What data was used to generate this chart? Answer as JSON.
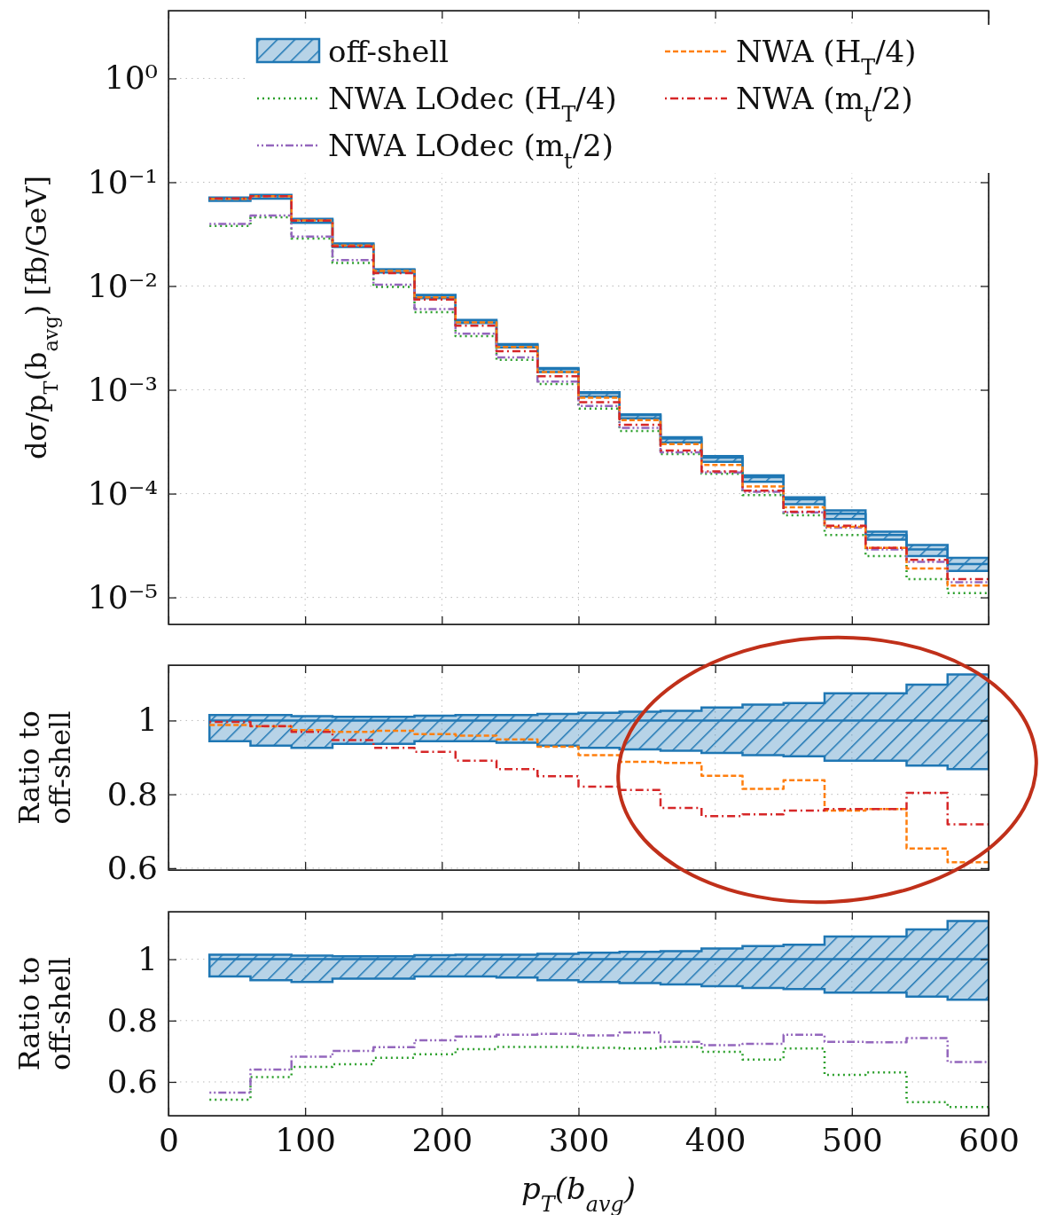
{
  "chart_data": [
    {
      "type": "step",
      "ylabel": "dσ/p$_{T}$(b$_{avg}$) [fb/GeV]",
      "x": [
        30,
        60,
        90,
        120,
        150,
        180,
        210,
        240,
        270,
        300,
        330,
        360,
        390,
        420,
        450,
        480,
        510,
        540,
        570,
        600
      ],
      "xlim": [
        0,
        600
      ],
      "xticks": [
        0,
        100,
        200,
        300,
        400,
        500,
        600
      ],
      "ylim": [
        5.5e-06,
        4.5
      ],
      "log": true,
      "yticks": [
        {
          "value": 1e-05,
          "label": "10⁻⁵"
        },
        {
          "value": 0.0001,
          "label": "10⁻⁴"
        },
        {
          "value": 0.001,
          "label": "10⁻³"
        },
        {
          "value": 0.01,
          "label": "10⁻²"
        },
        {
          "value": 0.1,
          "label": "10⁻¹"
        },
        {
          "value": 1,
          "label": "10⁰"
        }
      ],
      "tick_labels": "y",
      "grid": true,
      "legend": "top",
      "series": [
        {
          "name": "off-shell",
          "color": "#1f77b4",
          "line_style": "solid",
          "values": [
            0.07,
            0.0745,
            0.044,
            0.0254,
            0.0144,
            0.0081,
            0.00465,
            0.00272,
            0.00159,
            0.00093,
            0.00057,
            0.00034,
            0.000222,
            0.000144,
            8.8e-05,
            6.4e-05,
            4e-05,
            2.9e-05,
            2.1e-05,
            2.1e-05
          ],
          "lower": [
            0.066,
            0.0694,
            0.0407,
            0.0238,
            0.0135,
            0.00765,
            0.00439,
            0.00256,
            0.00148,
            0.00086,
            0.00053,
            0.00031,
            0.000202,
            0.00013,
            7.9e-05,
            5.7e-05,
            3.6e-05,
            2.5e-05,
            1.8e-05,
            1.8e-05
          ],
          "upper": [
            0.0711,
            0.0756,
            0.0445,
            0.0257,
            0.0145,
            0.0082,
            0.00472,
            0.00276,
            0.00162,
            0.00095,
            0.00058,
            0.00035,
            0.00023,
            0.00015,
            9.2e-05,
            6.9e-05,
            4.3e-05,
            3.2e-05,
            2.4e-05,
            2.4e-05
          ]
        },
        {
          "name": "NWA LOdec (H$_{T}$/4)",
          "color": "#2ca02c",
          "line_style": "dotted",
          "values": [
            0.0379,
            0.0459,
            0.0286,
            0.0167,
            0.0098,
            0.0056,
            0.00329,
            0.00194,
            0.00114,
            0.00066,
            0.0004,
            0.00024,
            0.000155,
            9.7e-05,
            6.2e-05,
            4e-05,
            2.5e-05,
            1.5e-05,
            1.1e-05,
            1.1e-05
          ]
        },
        {
          "name": "NWA LOdec (m$_{t}$/2)",
          "color": "#9467bd",
          "line_style": "dashdotdot",
          "values": [
            0.0396,
            0.0477,
            0.03,
            0.0178,
            0.0103,
            0.006,
            0.00348,
            0.00205,
            0.0012,
            0.0007,
            0.00043,
            0.00025,
            0.00016,
            0.000104,
            6.6e-05,
            4.7e-05,
            2.9e-05,
            2.2e-05,
            1.4e-05,
            1.4e-05
          ]
        },
        {
          "name": "NWA (H$_{T}$/4)",
          "color": "#ff7f0e",
          "line_style": "dashed",
          "values": [
            0.0692,
            0.0733,
            0.0429,
            0.0246,
            0.014,
            0.0078,
            0.00446,
            0.00258,
            0.00148,
            0.00084,
            0.00051,
            0.0003,
            0.000189,
            0.000117,
            7.4e-05,
            4.8e-05,
            3e-05,
            1.9e-05,
            1.3e-05,
            1.3e-05
          ]
        },
        {
          "name": "NWA (m$_{t}$/2)",
          "color": "#d62728",
          "line_style": "dashdot",
          "values": [
            0.0697,
            0.0734,
            0.0426,
            0.0241,
            0.0133,
            0.0074,
            0.00414,
            0.00236,
            0.00135,
            0.00076,
            0.00046,
            0.00026,
            0.000164,
            0.000107,
            6.7e-05,
            4.9e-05,
            3e-05,
            2.3e-05,
            1.5e-05,
            1.5e-05
          ]
        }
      ]
    },
    {
      "type": "step",
      "ylabel": "Ratio to off-shell",
      "x": [
        30,
        60,
        90,
        120,
        150,
        180,
        210,
        240,
        270,
        300,
        330,
        360,
        390,
        420,
        450,
        480,
        510,
        540,
        570,
        600
      ],
      "xlim": [
        0,
        600
      ],
      "xticks": [
        0,
        100,
        200,
        300,
        400,
        500,
        600
      ],
      "ylim": [
        0.595,
        1.15
      ],
      "yticks": [
        0.6,
        0.8,
        1
      ],
      "tick_labels": "y",
      "grid": true,
      "series": [
        {
          "color": "#1f77b4",
          "line_style": "solid",
          "values": [
            1,
            1,
            1,
            1,
            1,
            1,
            1,
            1,
            1,
            1,
            1,
            1,
            1,
            1,
            1,
            1,
            1,
            1,
            1,
            1
          ],
          "lower": [
            0.944,
            0.932,
            0.926,
            0.937,
            0.937,
            0.944,
            0.944,
            0.94,
            0.932,
            0.926,
            0.922,
            0.918,
            0.912,
            0.906,
            0.903,
            0.891,
            0.891,
            0.878,
            0.868,
            0.868
          ],
          "upper": [
            1.015,
            1.015,
            1.012,
            1.01,
            1.01,
            1.013,
            1.015,
            1.015,
            1.018,
            1.021,
            1.024,
            1.026,
            1.035,
            1.043,
            1.047,
            1.074,
            1.074,
            1.097,
            1.125,
            1.125
          ]
        },
        {
          "color": "#ff7f0e",
          "line_style": "dashed",
          "values": [
            0.988,
            0.984,
            0.974,
            0.969,
            0.972,
            0.963,
            0.959,
            0.949,
            0.929,
            0.906,
            0.888,
            0.885,
            0.85,
            0.815,
            0.838,
            0.756,
            0.76,
            0.653,
            0.616,
            0.616
          ]
        },
        {
          "color": "#d62728",
          "line_style": "dashdot",
          "values": [
            0.996,
            0.985,
            0.969,
            0.947,
            0.926,
            0.915,
            0.891,
            0.868,
            0.849,
            0.821,
            0.812,
            0.763,
            0.741,
            0.746,
            0.756,
            0.76,
            0.76,
            0.804,
            0.719,
            0.719
          ]
        }
      ]
    },
    {
      "type": "step",
      "ylabel": "Ratio to off-shell",
      "xlabel": "p$_{T}$(b$_{avg}$)",
      "x": [
        30,
        60,
        90,
        120,
        150,
        180,
        210,
        240,
        270,
        300,
        330,
        360,
        390,
        420,
        450,
        480,
        510,
        540,
        570,
        600
      ],
      "xlim": [
        0,
        600
      ],
      "xticks": [
        0,
        100,
        200,
        300,
        400,
        500,
        600
      ],
      "ylim": [
        0.49,
        1.155
      ],
      "yticks": [
        0.6,
        0.8,
        1
      ],
      "grid": true,
      "series": [
        {
          "color": "#1f77b4",
          "line_style": "solid",
          "values": [
            1,
            1,
            1,
            1,
            1,
            1,
            1,
            1,
            1,
            1,
            1,
            1,
            1,
            1,
            1,
            1,
            1,
            1,
            1,
            1
          ],
          "lower": [
            0.944,
            0.932,
            0.926,
            0.937,
            0.937,
            0.944,
            0.944,
            0.94,
            0.932,
            0.926,
            0.922,
            0.918,
            0.912,
            0.906,
            0.903,
            0.891,
            0.891,
            0.878,
            0.868,
            0.868
          ],
          "upper": [
            1.015,
            1.015,
            1.012,
            1.01,
            1.01,
            1.013,
            1.015,
            1.015,
            1.018,
            1.021,
            1.024,
            1.026,
            1.035,
            1.043,
            1.047,
            1.074,
            1.074,
            1.097,
            1.125,
            1.125
          ]
        },
        {
          "color": "#2ca02c",
          "line_style": "dotted",
          "values": [
            0.542,
            0.616,
            0.649,
            0.658,
            0.679,
            0.69,
            0.707,
            0.714,
            0.714,
            0.711,
            0.709,
            0.714,
            0.698,
            0.673,
            0.709,
            0.623,
            0.631,
            0.534,
            0.518,
            0.518
          ]
        },
        {
          "color": "#9467bd",
          "line_style": "dashdotdot",
          "values": [
            0.565,
            0.64,
            0.682,
            0.701,
            0.713,
            0.736,
            0.748,
            0.754,
            0.757,
            0.752,
            0.761,
            0.731,
            0.72,
            0.724,
            0.754,
            0.731,
            0.729,
            0.743,
            0.665,
            0.665
          ]
        }
      ]
    }
  ]
}
